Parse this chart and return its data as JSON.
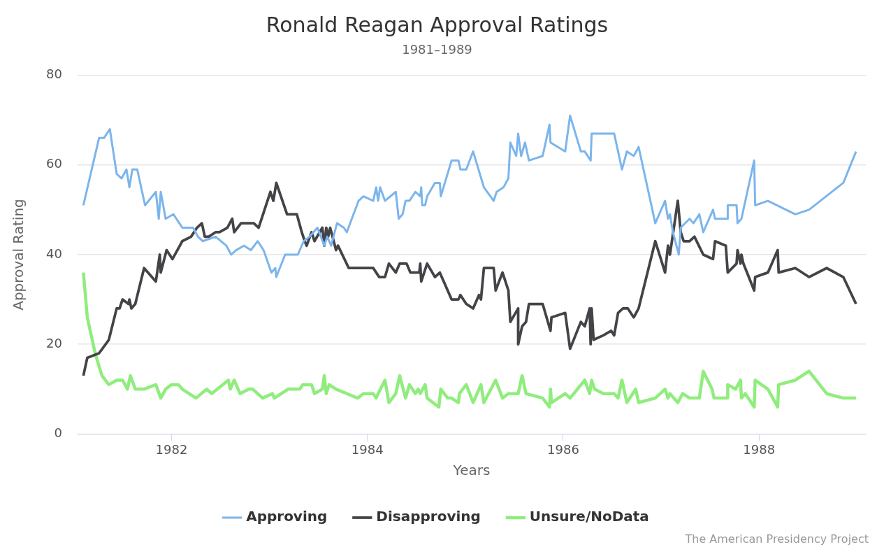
{
  "chart_data": {
    "type": "line",
    "title": "Ronald Reagan Approval Ratings",
    "subtitle": "1981–1989",
    "xlabel": "Years",
    "ylabel": "Approval Rating",
    "xlim": [
      1981.04,
      1989.09
    ],
    "xticks": [
      1982,
      1984,
      1986,
      1988
    ],
    "ylim": [
      0,
      80
    ],
    "yticks": [
      0,
      20,
      40,
      60,
      80
    ],
    "grid": "y",
    "legend": "bottom",
    "line_style": "solid",
    "annotations": [
      "The American Presidency Project"
    ],
    "series": [
      {
        "name": "Approving",
        "color": "#7cb5ec",
        "x": [
          1981.1,
          1981.26,
          1981.31,
          1981.37,
          1981.44,
          1981.49,
          1981.54,
          1981.57,
          1981.6,
          1981.65,
          1981.73,
          1981.84,
          1981.87,
          1981.89,
          1981.94,
          1982.02,
          1982.11,
          1982.22,
          1982.27,
          1982.32,
          1982.45,
          1982.56,
          1982.61,
          1982.66,
          1982.74,
          1982.81,
          1982.88,
          1982.94,
          1983.02,
          1983.06,
          1983.07,
          1983.16,
          1983.29,
          1983.35,
          1983.41,
          1983.49,
          1983.56,
          1983.59,
          1983.63,
          1983.69,
          1983.76,
          1983.79,
          1983.91,
          1983.96,
          1984.06,
          1984.09,
          1984.11,
          1984.13,
          1984.18,
          1984.29,
          1984.32,
          1984.36,
          1984.39,
          1984.43,
          1984.49,
          1984.54,
          1984.55,
          1984.56,
          1984.59,
          1984.61,
          1984.69,
          1984.74,
          1984.75,
          1984.86,
          1984.93,
          1984.95,
          1985.01,
          1985.08,
          1985.19,
          1985.29,
          1985.32,
          1985.39,
          1985.44,
          1985.46,
          1985.52,
          1985.54,
          1985.57,
          1985.61,
          1985.65,
          1985.79,
          1985.86,
          1985.87,
          1986.02,
          1986.07,
          1986.18,
          1986.22,
          1986.28,
          1986.29,
          1986.32,
          1986.52,
          1986.6,
          1986.65,
          1986.72,
          1986.77,
          1986.94,
          1987.04,
          1987.07,
          1987.09,
          1987.12,
          1987.18,
          1987.2,
          1987.29,
          1987.33,
          1987.39,
          1987.43,
          1987.53,
          1987.55,
          1987.68,
          1987.68,
          1987.77,
          1987.78,
          1987.82,
          1987.84,
          1987.95,
          1987.96,
          1988.09,
          1988.37,
          1988.51,
          1988.86,
          1988.99
        ],
        "values": [
          51,
          66,
          66,
          68,
          58,
          57,
          59,
          55,
          59,
          59,
          51,
          54,
          48,
          54,
          48,
          49,
          46,
          46,
          44,
          43,
          44,
          42,
          40,
          41,
          42,
          41,
          43,
          41,
          36,
          37,
          35,
          40,
          40,
          43,
          44,
          46,
          42,
          44,
          42,
          47,
          46,
          45,
          52,
          53,
          52,
          55,
          52,
          55,
          52,
          54,
          48,
          49,
          52,
          52,
          54,
          53,
          55,
          51,
          51,
          53,
          56,
          56,
          53,
          61,
          61,
          59,
          59,
          63,
          55,
          52,
          54,
          55,
          57,
          65,
          62,
          67,
          62,
          65,
          61,
          62,
          69,
          65,
          63,
          71,
          63,
          63,
          61,
          67,
          67,
          67,
          59,
          63,
          62,
          64,
          47,
          52,
          48,
          49,
          45,
          40,
          46,
          48,
          47,
          49,
          45,
          50,
          48,
          48,
          51,
          51,
          47,
          48,
          50,
          61,
          51,
          52,
          49,
          50,
          56,
          63
        ]
      },
      {
        "name": "Disapproving",
        "color": "#434348",
        "x": [
          1981.1,
          1981.14,
          1981.26,
          1981.36,
          1981.44,
          1981.47,
          1981.5,
          1981.56,
          1981.57,
          1981.59,
          1981.63,
          1981.72,
          1981.84,
          1981.88,
          1981.89,
          1981.95,
          1982.01,
          1982.11,
          1982.2,
          1982.26,
          1982.31,
          1982.34,
          1982.38,
          1982.45,
          1982.49,
          1982.57,
          1982.62,
          1982.64,
          1982.71,
          1982.84,
          1982.89,
          1982.95,
          1983.01,
          1983.04,
          1983.07,
          1983.18,
          1983.28,
          1983.33,
          1983.36,
          1983.38,
          1983.43,
          1983.46,
          1983.54,
          1983.56,
          1983.58,
          1983.6,
          1983.62,
          1983.68,
          1983.7,
          1983.81,
          1983.9,
          1984.06,
          1984.09,
          1984.12,
          1984.18,
          1984.22,
          1984.29,
          1984.33,
          1984.4,
          1984.44,
          1984.53,
          1984.54,
          1984.55,
          1984.61,
          1984.69,
          1984.74,
          1984.86,
          1984.93,
          1984.95,
          1985.01,
          1985.08,
          1985.14,
          1985.16,
          1985.19,
          1985.29,
          1985.31,
          1985.38,
          1985.44,
          1985.46,
          1985.54,
          1985.54,
          1985.58,
          1985.62,
          1985.65,
          1985.79,
          1985.87,
          1985.88,
          1986.02,
          1986.07,
          1986.18,
          1986.22,
          1986.27,
          1986.28,
          1986.29,
          1986.31,
          1986.41,
          1986.49,
          1986.52,
          1986.56,
          1986.61,
          1986.66,
          1986.72,
          1986.77,
          1986.94,
          1987.04,
          1987.07,
          1987.09,
          1987.17,
          1987.2,
          1987.23,
          1987.29,
          1987.34,
          1987.43,
          1987.53,
          1987.55,
          1987.66,
          1987.68,
          1987.77,
          1987.78,
          1987.81,
          1987.82,
          1987.84,
          1987.95,
          1987.96,
          1988.09,
          1988.19,
          1988.2,
          1988.37,
          1988.51,
          1988.69,
          1988.86,
          1988.99
        ],
        "values": [
          13,
          17,
          18,
          21,
          28,
          28,
          30,
          29,
          30,
          28,
          29,
          37,
          34,
          40,
          36,
          41,
          39,
          43,
          44,
          46,
          47,
          44,
          44,
          45,
          45,
          46,
          48,
          45,
          47,
          47,
          46,
          50,
          54,
          52,
          56,
          49,
          49,
          45,
          43,
          42,
          45,
          43,
          46,
          42,
          46,
          44,
          46,
          41,
          42,
          37,
          37,
          37,
          36,
          35,
          35,
          38,
          36,
          38,
          38,
          36,
          36,
          38,
          34,
          38,
          35,
          36,
          30,
          30,
          31,
          29,
          28,
          31,
          30,
          37,
          37,
          32,
          36,
          32,
          25,
          28,
          20,
          24,
          25,
          29,
          29,
          23,
          26,
          27,
          19,
          25,
          24,
          28,
          20,
          28,
          21,
          22,
          23,
          22,
          27,
          28,
          28,
          26,
          28,
          43,
          36,
          42,
          40,
          52,
          45,
          43,
          43,
          44,
          40,
          39,
          43,
          42,
          36,
          38,
          41,
          38,
          40,
          38,
          32,
          35,
          36,
          41,
          36,
          37,
          35,
          37,
          35,
          29
        ]
      },
      {
        "name": "Unsure/NoData",
        "color": "#90ed7d",
        "x": [
          1981.1,
          1981.14,
          1981.22,
          1981.29,
          1981.36,
          1981.44,
          1981.5,
          1981.55,
          1981.58,
          1981.63,
          1981.72,
          1981.84,
          1981.89,
          1981.94,
          1982.0,
          1982.07,
          1982.11,
          1982.25,
          1982.36,
          1982.41,
          1982.58,
          1982.6,
          1982.64,
          1982.7,
          1982.79,
          1982.83,
          1982.93,
          1983.03,
          1983.05,
          1983.19,
          1983.31,
          1983.34,
          1983.43,
          1983.46,
          1983.54,
          1983.56,
          1983.58,
          1983.61,
          1983.68,
          1983.9,
          1983.96,
          1984.06,
          1984.09,
          1984.11,
          1984.18,
          1984.22,
          1984.29,
          1984.33,
          1984.39,
          1984.43,
          1984.49,
          1984.52,
          1984.54,
          1984.59,
          1984.61,
          1984.73,
          1984.75,
          1984.82,
          1984.86,
          1984.93,
          1984.94,
          1985.01,
          1985.08,
          1985.16,
          1985.19,
          1985.31,
          1985.38,
          1985.44,
          1985.54,
          1985.58,
          1985.62,
          1985.79,
          1985.86,
          1985.87,
          1985.88,
          1986.02,
          1986.07,
          1986.22,
          1986.27,
          1986.29,
          1986.32,
          1986.41,
          1986.52,
          1986.56,
          1986.6,
          1986.65,
          1986.74,
          1986.77,
          1986.94,
          1987.04,
          1987.07,
          1987.09,
          1987.17,
          1987.22,
          1987.29,
          1987.39,
          1987.43,
          1987.52,
          1987.54,
          1987.68,
          1987.68,
          1987.76,
          1987.81,
          1987.82,
          1987.86,
          1987.95,
          1987.96,
          1988.09,
          1988.19,
          1988.2,
          1988.37,
          1988.51,
          1988.69,
          1988.86,
          1988.99
        ],
        "values": [
          36,
          26,
          18,
          13,
          11,
          12,
          12,
          10,
          13,
          10,
          10,
          11,
          8,
          10,
          11,
          11,
          10,
          8,
          10,
          9,
          12,
          10,
          12,
          9,
          10,
          10,
          8,
          9,
          8,
          10,
          10,
          11,
          11,
          9,
          10,
          13,
          9,
          11,
          10,
          8,
          9,
          9,
          8,
          9,
          12,
          7,
          9,
          13,
          8,
          11,
          9,
          10,
          9,
          11,
          8,
          6,
          10,
          8,
          8,
          7,
          9,
          11,
          7,
          11,
          7,
          12,
          8,
          9,
          9,
          13,
          9,
          8,
          6,
          10,
          7,
          9,
          8,
          12,
          9,
          12,
          10,
          9,
          9,
          8,
          12,
          7,
          10,
          7,
          8,
          10,
          8,
          9,
          7,
          9,
          8,
          8,
          14,
          10,
          8,
          8,
          11,
          10,
          12,
          8,
          9,
          6,
          12,
          10,
          6,
          11,
          12,
          14,
          9,
          8,
          8
        ]
      }
    ]
  }
}
